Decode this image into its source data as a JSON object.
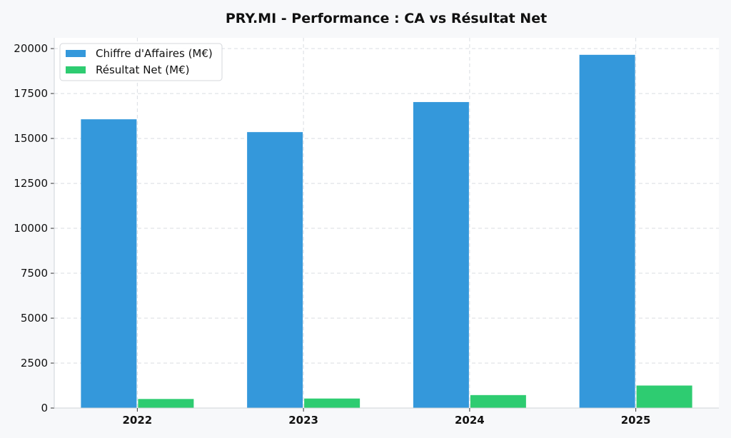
{
  "chart_data": {
    "type": "bar",
    "title": "PRY.MI - Performance : CA vs Résultat Net",
    "xlabel": "",
    "ylabel": "",
    "categories": [
      "2022",
      "2023",
      "2024",
      "2025"
    ],
    "series": [
      {
        "name": "Chiffre d'Affaires (M€)",
        "values": [
          16067,
          15354,
          17025,
          19654
        ],
        "color": "#3498db"
      },
      {
        "name": "Résultat Net (M€)",
        "values": [
          504,
          529,
          721,
          1252
        ],
        "color": "#2ecc71"
      }
    ],
    "ylim": [
      0,
      20600
    ],
    "yticks": [
      0,
      2500,
      5000,
      7500,
      10000,
      12500,
      15000,
      17500,
      20000
    ],
    "grid": true,
    "legend_position": "top-left"
  }
}
